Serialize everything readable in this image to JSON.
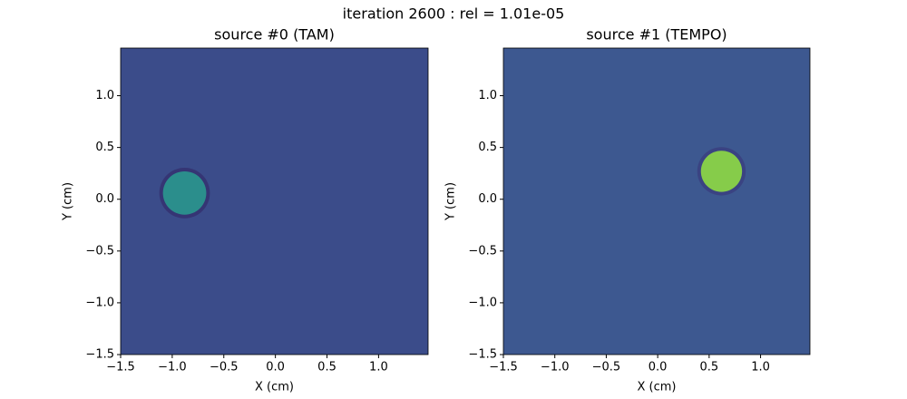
{
  "suptitle": "iteration 2600 : rel = 1.01e-05",
  "chart_data": [
    {
      "type": "image",
      "title": "source #0 (TAM)",
      "x_label": "X (cm)",
      "y_label": "Y (cm)",
      "xlim": [
        -1.5,
        1.48
      ],
      "ylim": [
        -1.5,
        1.46
      ],
      "xticks": [
        {
          "value": -1.5,
          "label": "−1.5"
        },
        {
          "value": -1.0,
          "label": "−1.0"
        },
        {
          "value": -0.5,
          "label": "−0.5"
        },
        {
          "value": 0.0,
          "label": "0.0"
        },
        {
          "value": 0.5,
          "label": "0.5"
        },
        {
          "value": 1.0,
          "label": "1.0"
        }
      ],
      "yticks": [
        {
          "value": -1.5,
          "label": "−1.5"
        },
        {
          "value": -1.0,
          "label": "−1.0"
        },
        {
          "value": -0.5,
          "label": "−0.5"
        },
        {
          "value": 0.0,
          "label": "0.0"
        },
        {
          "value": 0.5,
          "label": "0.5"
        },
        {
          "value": 1.0,
          "label": "1.0"
        }
      ],
      "background": "#3b4c8a",
      "spot": {
        "x": -0.88,
        "y": 0.06,
        "r": 0.21,
        "color": "#2b8e8c",
        "ring_color": "#352f6e"
      }
    },
    {
      "type": "image",
      "title": "source #1 (TEMPO)",
      "x_label": "X (cm)",
      "y_label": "Y (cm)",
      "xlim": [
        -1.5,
        1.48
      ],
      "ylim": [
        -1.5,
        1.46
      ],
      "xticks": [
        {
          "value": -1.5,
          "label": "−1.5"
        },
        {
          "value": -1.0,
          "label": "−1.0"
        },
        {
          "value": -0.5,
          "label": "−0.5"
        },
        {
          "value": 0.0,
          "label": "0.0"
        },
        {
          "value": 0.5,
          "label": "0.5"
        },
        {
          "value": 1.0,
          "label": "1.0"
        }
      ],
      "yticks": [
        {
          "value": -1.5,
          "label": "−1.5"
        },
        {
          "value": -1.0,
          "label": "−1.0"
        },
        {
          "value": -0.5,
          "label": "−0.5"
        },
        {
          "value": 0.0,
          "label": "0.0"
        },
        {
          "value": 0.5,
          "label": "0.5"
        },
        {
          "value": 1.0,
          "label": "1.0"
        }
      ],
      "background": "#3d5890",
      "spot": {
        "x": 0.62,
        "y": 0.27,
        "r": 0.2,
        "color": "#86cc4a",
        "ring_color": "#3a3f7e"
      }
    }
  ]
}
